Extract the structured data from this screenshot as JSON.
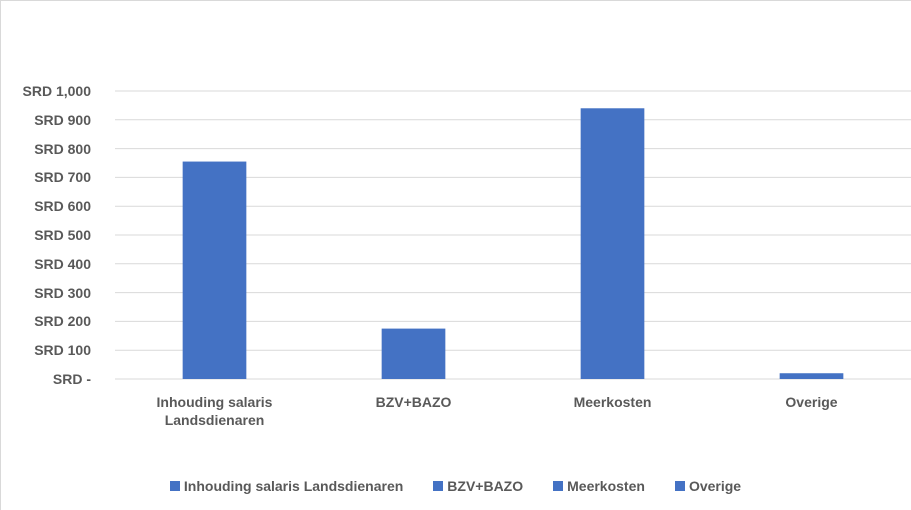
{
  "chart_data": {
    "type": "bar",
    "categories": [
      "Inhouding salaris Landsdienaren",
      "BZV+BAZO",
      "Meerkosten",
      "Overige"
    ],
    "values": [
      755,
      175,
      940,
      20
    ],
    "color": "#4472c4",
    "ylim": [
      0,
      1000
    ],
    "yticks": [
      {
        "value": 0,
        "label": "SRD -"
      },
      {
        "value": 100,
        "label": "SRD 100"
      },
      {
        "value": 200,
        "label": "SRD 200"
      },
      {
        "value": 300,
        "label": "SRD 300"
      },
      {
        "value": 400,
        "label": "SRD 400"
      },
      {
        "value": 500,
        "label": "SRD 500"
      },
      {
        "value": 600,
        "label": "SRD 600"
      },
      {
        "value": 700,
        "label": "SRD 700"
      },
      {
        "value": 800,
        "label": "SRD 800"
      },
      {
        "value": 900,
        "label": "SRD 900"
      },
      {
        "value": 1000,
        "label": "SRD 1,000"
      }
    ],
    "grid": true
  }
}
